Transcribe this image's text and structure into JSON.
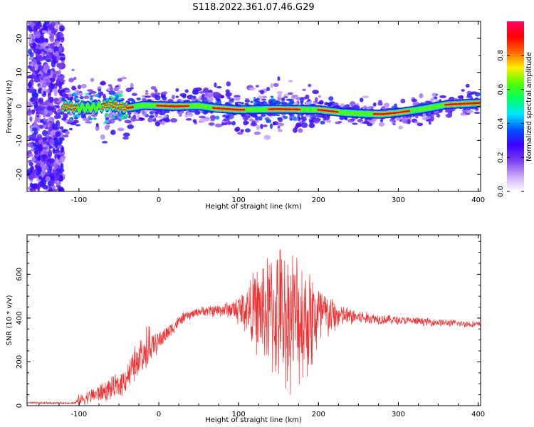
{
  "title": "S118.2022.361.07.46.G29",
  "chart_data": [
    {
      "type": "heatmap",
      "panel": "top",
      "xlabel": "Height of straight line (km)",
      "ylabel": "Frequency (Hz)",
      "xlim": [
        -165,
        403
      ],
      "ylim": [
        -25,
        25
      ],
      "xticks": [
        "-100",
        "0",
        "100",
        "200",
        "300",
        "400"
      ],
      "yticks": [
        "-20",
        "-10",
        "0",
        "10",
        "20"
      ],
      "colorbar": {
        "label": "Normalized spectral amplitude",
        "range": [
          0,
          1
        ],
        "ticks": [
          "0.0",
          "0.2",
          "0.4",
          "0.6",
          "0.8"
        ],
        "colors": [
          "#ffffff",
          "#c9a6f7",
          "#7b3ff0",
          "#3b00ff",
          "#0055ff",
          "#00e5ff",
          "#00ff66",
          "#55ff00",
          "#ffee00",
          "#ff6600",
          "#ff0000",
          "#ff0066"
        ]
      },
      "ridge": {
        "x": [
          -120,
          -100,
          -80,
          -60,
          -40,
          -20,
          0,
          20,
          50,
          70,
          100,
          150,
          200,
          230,
          260,
          280,
          300,
          330,
          360,
          400
        ],
        "frequency": [
          0,
          -0.5,
          -0.3,
          0.5,
          -0.5,
          0.3,
          0.2,
          0,
          0.2,
          -0.5,
          -1,
          -0.8,
          -1,
          -1.8,
          -2.2,
          -2.3,
          -1.8,
          -0.8,
          0.5,
          1
        ]
      }
    },
    {
      "type": "line",
      "panel": "bottom",
      "xlabel": "Height of straight line (km)",
      "ylabel": "SNR (10 * v/v)",
      "xlim": [
        -165,
        403
      ],
      "ylim": [
        0,
        780
      ],
      "xticks": [
        "-100",
        "0",
        "100",
        "200",
        "300",
        "400"
      ],
      "yticks": [
        "0",
        "200",
        "400",
        "600"
      ],
      "color": "#f03030",
      "envelope": {
        "x": [
          -165,
          -105,
          -100,
          -80,
          -50,
          -30,
          -10,
          10,
          30,
          50,
          90,
          110,
          130,
          150,
          170,
          190,
          210,
          230,
          260,
          300,
          350,
          403
        ],
        "center": [
          12,
          12,
          25,
          50,
          90,
          180,
          260,
          330,
          400,
          430,
          440,
          440,
          430,
          420,
          400,
          400,
          410,
          410,
          400,
          390,
          380,
          370
        ],
        "spread": [
          5,
          5,
          25,
          40,
          60,
          80,
          60,
          40,
          25,
          20,
          40,
          120,
          250,
          330,
          330,
          270,
          120,
          50,
          30,
          20,
          18,
          15
        ]
      }
    }
  ]
}
